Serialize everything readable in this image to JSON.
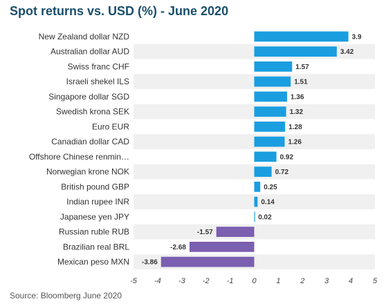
{
  "chart_data": {
    "type": "bar",
    "orientation": "horizontal",
    "title": "Spot returns vs. USD (%) - June 2020",
    "source": "Source: Bloomberg June 2020",
    "categories": [
      "New Zealand dollar NZD",
      "Australian dollar AUD",
      "Swiss franc CHF",
      "Israeli shekel ILS",
      "Singapore dollar SGD",
      "Swedish krona SEK",
      "Euro EUR",
      "Canadian dollar CAD",
      "Offshore Chinese renmin…",
      "Norwegian krone NOK",
      "British pound GBP",
      "Indian rupee INR",
      "Japanese yen JPY",
      "Russian ruble RUB",
      "Brazilian real BRL",
      "Mexican peso MXN"
    ],
    "values": [
      3.9,
      3.42,
      1.57,
      1.51,
      1.36,
      1.32,
      1.28,
      1.26,
      0.92,
      0.72,
      0.25,
      0.14,
      0.02,
      -1.57,
      -2.68,
      -3.86
    ],
    "value_labels": [
      "3.9",
      "3.42",
      "1.57",
      "1.51",
      "1.36",
      "1.32",
      "1.28",
      "1.26",
      "0.92",
      "0.72",
      "0.25",
      "0.14",
      "0.02",
      "-1.57",
      "-2.68",
      "-3.86"
    ],
    "xlim": [
      -5,
      5
    ],
    "xticks": [
      -5,
      -4,
      -3,
      -2,
      -1,
      0,
      1,
      2,
      3,
      4,
      5
    ],
    "xtick_labels": [
      "-5",
      "-4",
      "-3",
      "-2",
      "-1",
      "0",
      "1",
      "2",
      "3",
      "4",
      "5"
    ],
    "colors": {
      "positive": "#1a9ee0",
      "negative": "#7b5fb0",
      "band": "#f0f0f0"
    },
    "grid": false,
    "legend": "none"
  }
}
